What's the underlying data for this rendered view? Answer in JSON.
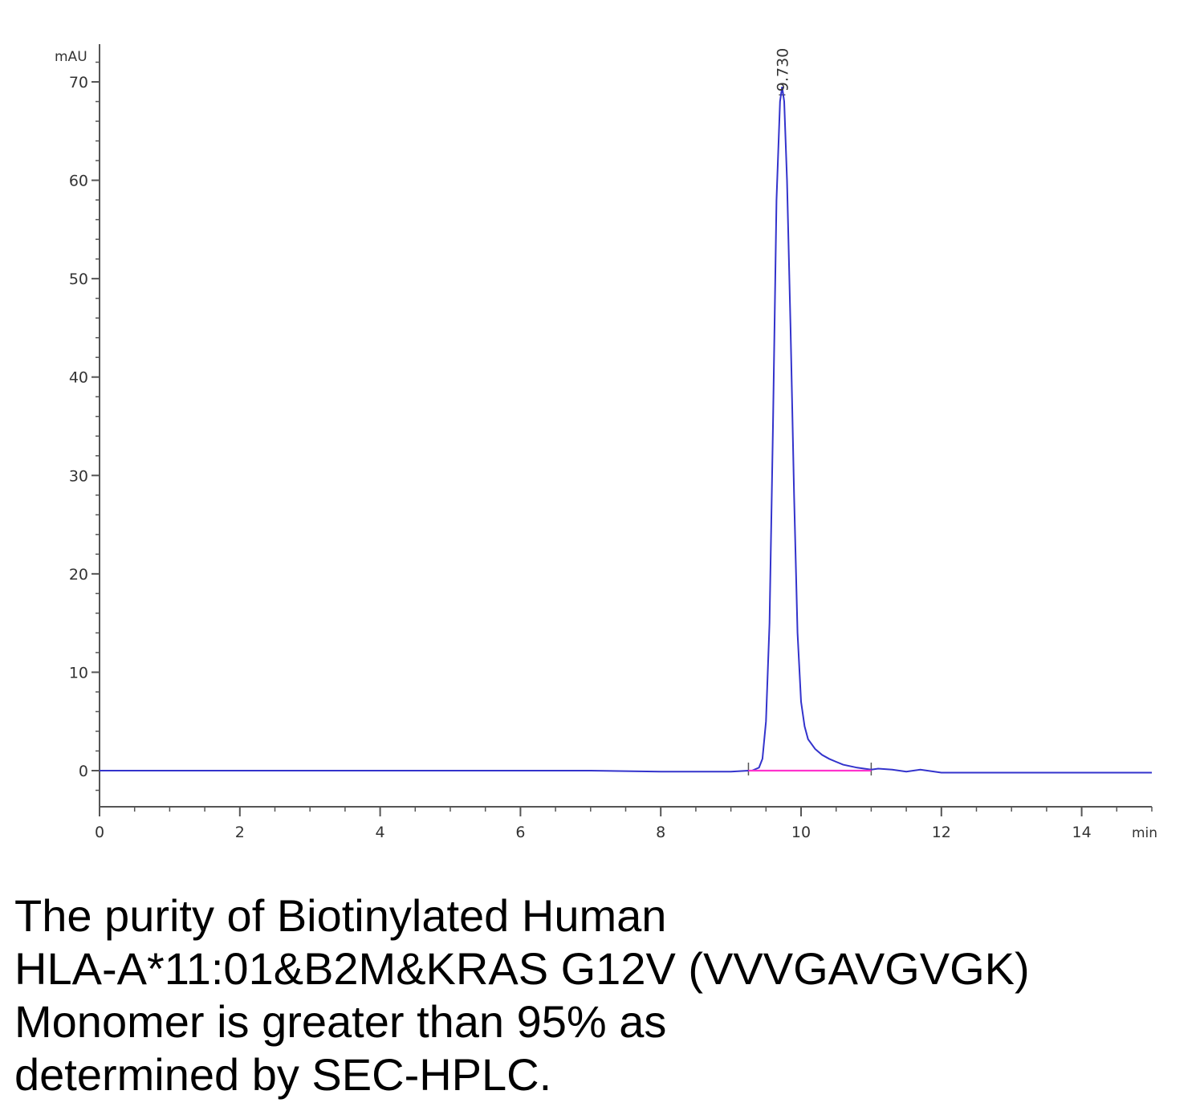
{
  "chart_data": {
    "type": "line",
    "ylabel": "mAU",
    "xlabel": "min",
    "xlim": [
      0,
      15
    ],
    "ylim": [
      -3.5,
      73
    ],
    "x_ticks": [
      0,
      2,
      4,
      6,
      8,
      10,
      12,
      14
    ],
    "y_ticks": [
      0,
      10,
      20,
      30,
      40,
      50,
      60,
      70
    ],
    "grid": false,
    "peak_annotation": "9.730",
    "series": [
      {
        "color": "#3333cc",
        "x": [
          0,
          1,
          2,
          3,
          4,
          5,
          6,
          7,
          8,
          9,
          9.25,
          9.3,
          9.4,
          9.45,
          9.5,
          9.55,
          9.6,
          9.65,
          9.7,
          9.73,
          9.76,
          9.8,
          9.85,
          9.9,
          9.95,
          10.0,
          10.05,
          10.1,
          10.2,
          10.3,
          10.4,
          10.5,
          10.6,
          10.8,
          11.0,
          11.1,
          11.3,
          11.5,
          11.7,
          12.0,
          12.5,
          13.0,
          13.5,
          14.0,
          14.5,
          15.0
        ],
        "y": [
          0,
          0,
          0,
          0,
          0,
          0,
          0,
          0,
          -0.1,
          -0.1,
          0,
          0,
          0.3,
          1.2,
          5,
          15,
          35,
          58,
          68,
          69.5,
          68,
          60,
          45,
          28,
          14,
          7,
          4.5,
          3.2,
          2.2,
          1.6,
          1.2,
          0.9,
          0.6,
          0.3,
          0.1,
          0.2,
          0.1,
          -0.1,
          0.1,
          -0.2,
          -0.2,
          -0.2,
          -0.2,
          -0.2,
          -0.2,
          -0.2
        ]
      },
      {
        "color": "#ff33cc",
        "x": [
          9.25,
          11.0
        ],
        "y": [
          0,
          0
        ]
      }
    ]
  },
  "caption": {
    "line1": "The purity of Biotinylated Human",
    "line2": "HLA-A*11:01&B2M&KRAS G12V (VVVGAVGVGK)",
    "line3": "Monomer is greater than 95% as",
    "line4": "determined by SEC-HPLC."
  }
}
